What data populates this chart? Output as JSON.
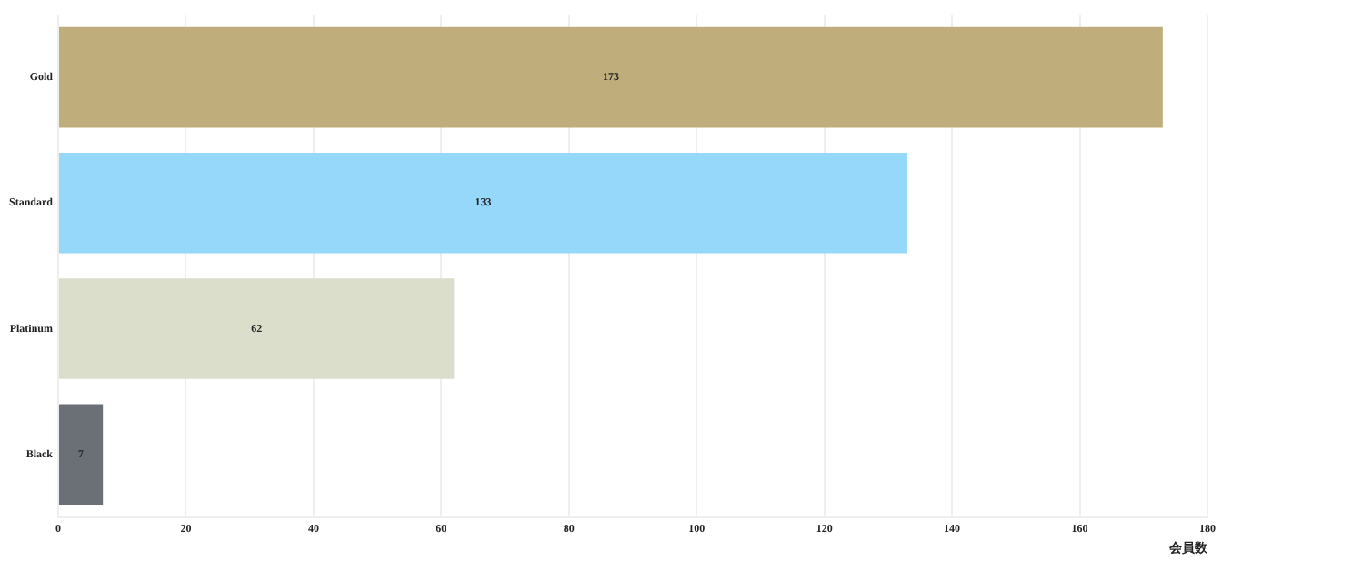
{
  "chart_data": {
    "type": "bar",
    "orientation": "horizontal",
    "xlabel": "会員数",
    "categories": [
      "Gold",
      "Standard",
      "Platinum",
      "Black"
    ],
    "values": [
      173,
      133,
      62,
      7
    ],
    "colors": [
      "#bfae7b",
      "#95d8fa",
      "#dcdecc",
      "#6b7077"
    ],
    "xlim": [
      0,
      180
    ],
    "xticks": [
      0,
      20,
      40,
      60,
      80,
      100,
      120,
      140,
      160,
      180
    ],
    "grid": "x",
    "data_labels": true
  }
}
